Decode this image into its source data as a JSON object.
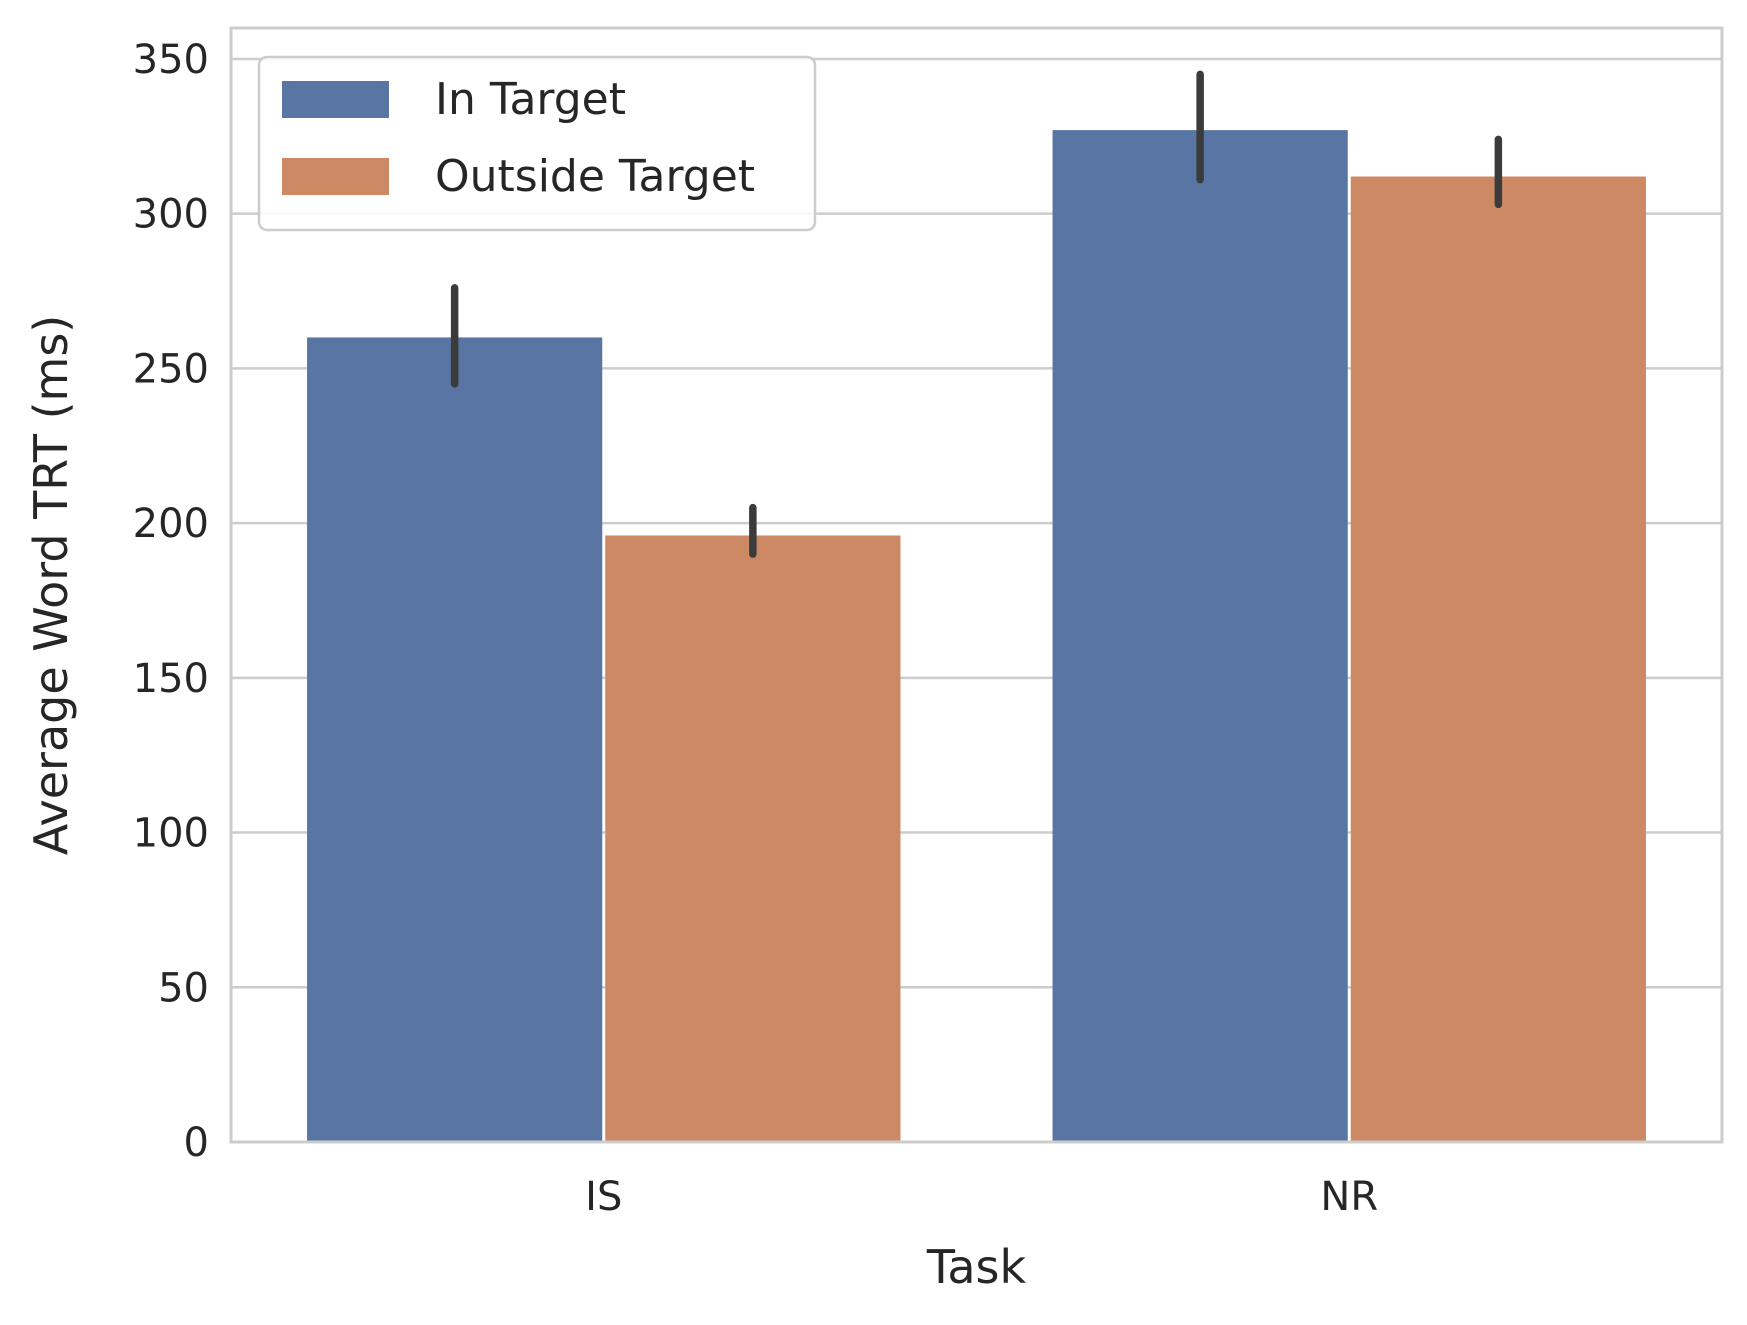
{
  "chart_data": {
    "type": "bar",
    "title": "",
    "xlabel": "Task",
    "ylabel": "Average Word TRT (ms)",
    "categories": [
      "IS",
      "NR"
    ],
    "ylim": [
      0,
      360
    ],
    "yticks": [
      0,
      50,
      100,
      150,
      200,
      250,
      300,
      350
    ],
    "grid": "horizontal",
    "legend_position": "top-left",
    "series": [
      {
        "name": "In Target",
        "color": "#5975a4",
        "values": [
          260,
          327
        ],
        "error_low": [
          245,
          311
        ],
        "error_high": [
          276,
          345
        ]
      },
      {
        "name": "Outside Target",
        "color": "#cc8963",
        "values": [
          196,
          312
        ],
        "error_low": [
          190,
          303
        ],
        "error_high": [
          205,
          324
        ]
      }
    ],
    "error_bar_color": "#3b3b3b"
  }
}
